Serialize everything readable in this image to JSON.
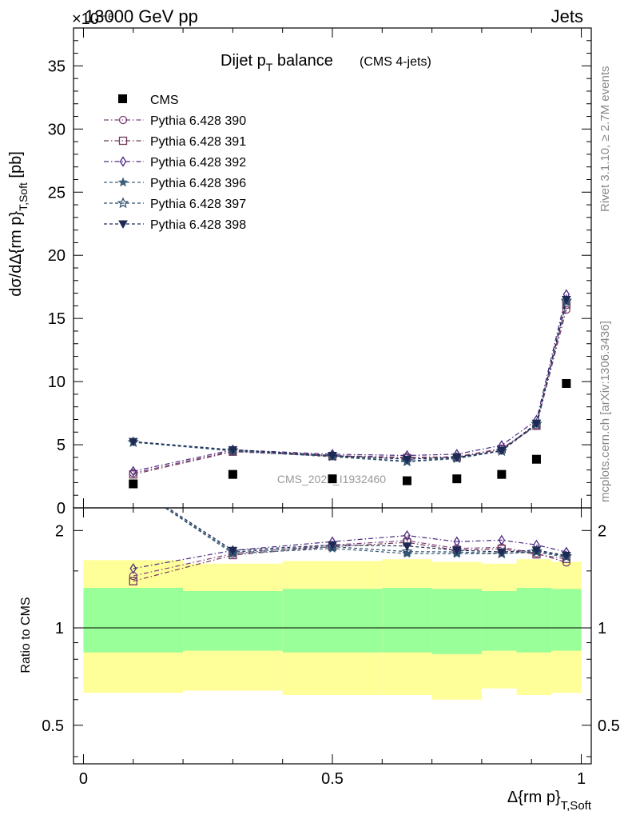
{
  "header": {
    "left": "13000 GeV pp",
    "right": "Jets",
    "multiplier": "×10⁻⁶"
  },
  "side_labels": {
    "rivet": "Rivet 3.1.10, ≥ 2.7M events",
    "mcplots": "mcplots.cern.ch [arXiv:1306.3436]"
  },
  "watermark": "CMS_2021_I1932460",
  "chart_data": {
    "type": "scatter",
    "title": "Dijet p_T balance",
    "subtitle": "(CMS 4-jets)",
    "xlabel": "Δ{rm p}_T,Soft",
    "ylabel": "dσ/dΔ{rm p}_T,Soft [pb]",
    "ratio_ylabel": "Ratio to CMS",
    "xlim": [
      -0.02,
      1.02
    ],
    "ylim": [
      0,
      38
    ],
    "ratio_ylim": [
      0.38,
      2.35
    ],
    "x_ticks": [
      0,
      0.5,
      1
    ],
    "x_tick_labels": [
      "0",
      "0.5",
      "1"
    ],
    "y_ticks": [
      0,
      5,
      10,
      15,
      20,
      25,
      30,
      35
    ],
    "y_tick_labels": [
      "0",
      "5",
      "10",
      "15",
      "20",
      "25",
      "30",
      "35"
    ],
    "ratio_ticks": [
      0.5,
      1,
      2
    ],
    "ratio_tick_labels": [
      "0.5",
      "1",
      "2"
    ],
    "x": [
      0.1,
      0.3,
      0.5,
      0.65,
      0.75,
      0.84,
      0.91,
      0.97
    ],
    "data": {
      "name": "CMS",
      "values": [
        1.9,
        2.65,
        2.3,
        2.15,
        2.3,
        2.65,
        3.85,
        9.85
      ],
      "band_edges": [
        0,
        0.2,
        0.4,
        0.6,
        0.7,
        0.8,
        0.87,
        0.94,
        1.0
      ],
      "band_inner": [
        [
          0.84,
          1.33
        ],
        [
          0.85,
          1.3
        ],
        [
          0.84,
          1.32
        ],
        [
          0.84,
          1.33
        ],
        [
          0.83,
          1.32
        ],
        [
          0.85,
          1.3
        ],
        [
          0.84,
          1.33
        ],
        [
          0.85,
          1.32
        ]
      ],
      "band_outer": [
        [
          0.63,
          1.62
        ],
        [
          0.64,
          1.58
        ],
        [
          0.62,
          1.61
        ],
        [
          0.62,
          1.63
        ],
        [
          0.6,
          1.6
        ],
        [
          0.65,
          1.58
        ],
        [
          0.62,
          1.63
        ],
        [
          0.63,
          1.6
        ]
      ]
    },
    "series": [
      {
        "name": "Pythia 6.428 390",
        "marker": "circle",
        "dash": "dashdot",
        "color": "#7b3f7a",
        "values": [
          2.75,
          4.5,
          4.15,
          4.0,
          4.05,
          4.7,
          6.55,
          15.7
        ]
      },
      {
        "name": "Pythia 6.428 391",
        "marker": "square",
        "dash": "dashdot",
        "color": "#6e3b5a",
        "values": [
          2.65,
          4.45,
          4.1,
          3.95,
          4.0,
          4.65,
          6.5,
          16.1
        ]
      },
      {
        "name": "Pythia 6.428 392",
        "marker": "diamond",
        "dash": "dashdot",
        "color": "#4b2a80",
        "values": [
          2.9,
          4.6,
          4.25,
          4.15,
          4.25,
          4.95,
          6.95,
          16.9
        ]
      },
      {
        "name": "Pythia 6.428 396",
        "marker": "star",
        "dash": "dashed",
        "color": "#3a5f78",
        "values": [
          5.2,
          4.5,
          4.05,
          3.65,
          3.9,
          4.5,
          6.6,
          16.3
        ]
      },
      {
        "name": "Pythia 6.428 397",
        "marker": "star-open",
        "dash": "dashed",
        "color": "#2f4c6b",
        "values": [
          5.2,
          4.55,
          4.1,
          3.7,
          3.95,
          4.5,
          6.65,
          16.4
        ]
      },
      {
        "name": "Pythia 6.428 398",
        "marker": "triangle-down",
        "dash": "dashed",
        "color": "#1c2a55",
        "values": [
          5.25,
          4.6,
          4.15,
          3.85,
          4.0,
          4.55,
          6.7,
          16.5
        ]
      }
    ]
  }
}
